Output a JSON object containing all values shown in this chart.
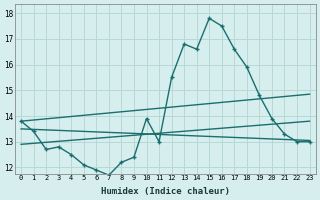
{
  "title": "",
  "xlabel": "Humidex (Indice chaleur)",
  "ylabel": "",
  "background_color": "#d6efee",
  "grid_color": "#b8d8d6",
  "line_color": "#1a6e6e",
  "xlim": [
    -0.5,
    23.5
  ],
  "ylim": [
    11.75,
    18.35
  ],
  "yticks": [
    12,
    13,
    14,
    15,
    16,
    17,
    18
  ],
  "xticks": [
    0,
    1,
    2,
    3,
    4,
    5,
    6,
    7,
    8,
    9,
    10,
    11,
    12,
    13,
    14,
    15,
    16,
    17,
    18,
    19,
    20,
    21,
    22,
    23
  ],
  "line1_x": [
    0,
    1,
    2,
    3,
    4,
    5,
    6,
    7,
    8,
    9,
    10,
    11,
    12,
    13,
    14,
    15,
    16,
    17,
    18,
    19,
    20,
    21,
    22,
    23
  ],
  "line1_y": [
    13.8,
    13.4,
    12.7,
    12.8,
    12.5,
    12.1,
    11.9,
    11.7,
    12.2,
    12.4,
    13.9,
    13.0,
    15.5,
    16.8,
    16.6,
    17.8,
    17.5,
    16.6,
    15.9,
    14.8,
    13.9,
    13.3,
    13.0,
    13.0
  ],
  "line2_x": [
    0,
    23
  ],
  "line2_y": [
    13.8,
    14.85
  ],
  "line3_x": [
    0,
    23
  ],
  "line3_y": [
    13.5,
    13.05
  ],
  "line4_x": [
    0,
    23
  ],
  "line4_y": [
    12.9,
    13.8
  ],
  "marker": "+",
  "markersize": 3.5,
  "linewidth": 1.0
}
